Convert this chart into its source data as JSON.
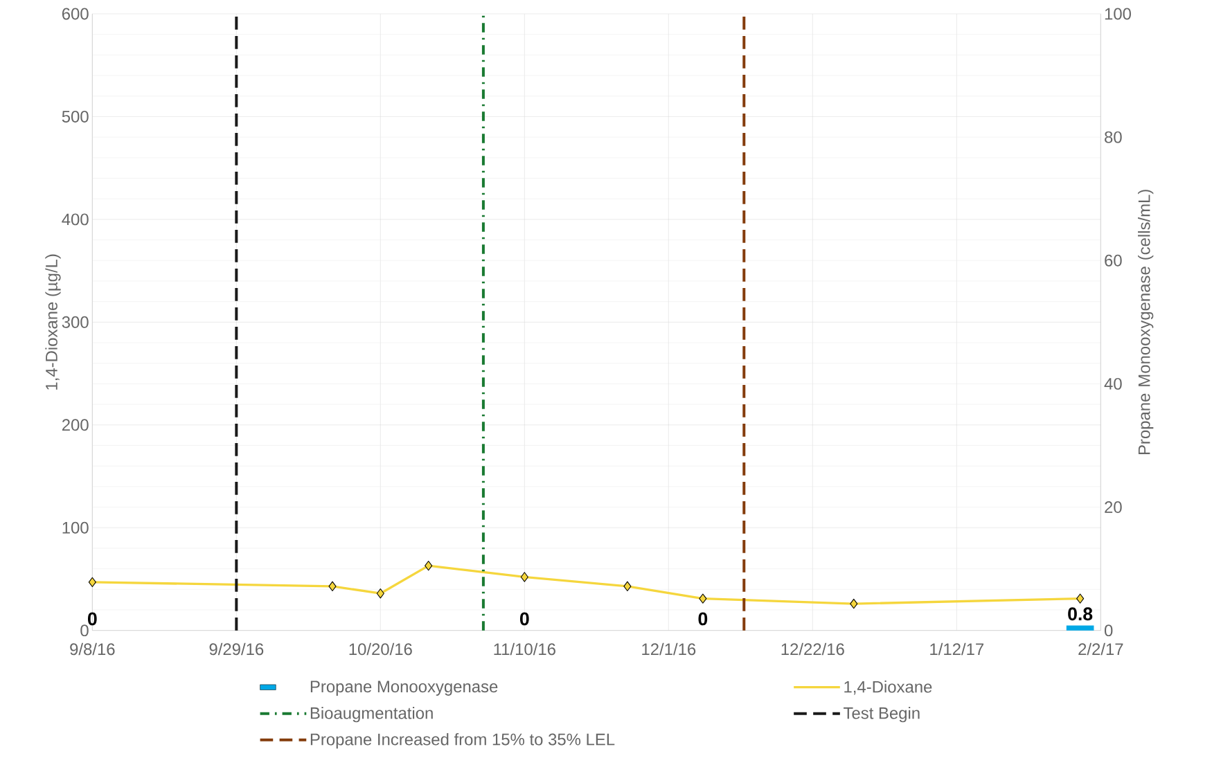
{
  "chart_data": {
    "type": "line",
    "ylabel": "1,4-Dioxane (µg/L)",
    "y2label": "Propane Monooxygenase (cells/mL)",
    "series": [
      {
        "name": "Propane Monooxygenase",
        "type": "bar",
        "axis": "y2",
        "color": "#00a8e6",
        "x": [
          "2016-09-08",
          "2016-11-10",
          "2016-12-06",
          "2017-01-30"
        ],
        "values": [
          0,
          0,
          0,
          0.8
        ],
        "value_labels": [
          "0",
          "0",
          "0",
          "0.8"
        ]
      },
      {
        "name": "1,4-Dioxane",
        "color": "#f5d63d",
        "marker": "diamond",
        "x": [
          "2016-09-08",
          "2016-10-13",
          "2016-10-20",
          "2016-10-27",
          "2016-11-10",
          "2016-11-25",
          "2016-12-06",
          "2016-12-28",
          "2017-01-30"
        ],
        "values": [
          47,
          43,
          36,
          63,
          52,
          43,
          31,
          26,
          31
        ]
      }
    ],
    "xlim": [
      "2016-09-08",
      "2017-02-02"
    ],
    "xticks": [
      {
        "value": "2016-09-08",
        "label": "9/8/16"
      },
      {
        "value": "2016-09-29",
        "label": "9/29/16"
      },
      {
        "value": "2016-10-20",
        "label": "10/20/16"
      },
      {
        "value": "2016-11-10",
        "label": "11/10/16"
      },
      {
        "value": "2016-12-01",
        "label": "12/1/16"
      },
      {
        "value": "2016-12-22",
        "label": "12/22/16"
      },
      {
        "value": "2017-01-12",
        "label": "1/12/17"
      },
      {
        "value": "2017-02-02",
        "label": "2/2/17"
      }
    ],
    "ylim": [
      0,
      600
    ],
    "yticks": [
      0,
      100,
      200,
      300,
      400,
      500,
      600
    ],
    "y2lim": [
      0,
      100
    ],
    "y2ticks": [
      0,
      20,
      40,
      60,
      80,
      100
    ],
    "ref_lines": [
      {
        "axis": "x",
        "value": "2016-11-04",
        "label": "Bioaugmentation",
        "color": "#1a7a32",
        "line_style": "dashdot"
      },
      {
        "axis": "x",
        "value": "2016-09-29",
        "label": "Test Begin",
        "color": "#1a1a1a",
        "line_style": "dashed"
      },
      {
        "axis": "x",
        "value": "2016-12-12",
        "label": "Propane Increased from 15% to 35% LEL",
        "color": "#843c0c",
        "line_style": "dashed"
      }
    ],
    "grid": true,
    "legend": "bottom"
  }
}
